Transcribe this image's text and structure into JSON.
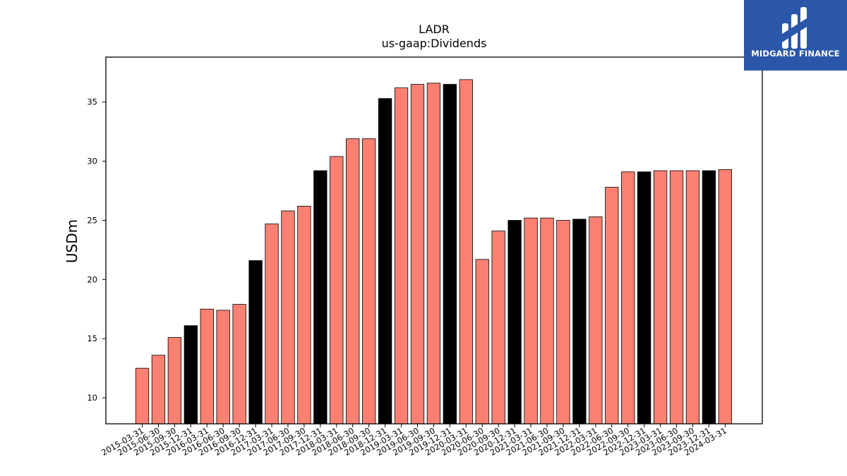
{
  "chart_data": {
    "type": "bar",
    "title": "LADR",
    "subtitle": "us-gaap:Dividends",
    "xlabel": "",
    "ylabel": "USDm",
    "ylim": [
      7.8,
      38.8
    ],
    "yticks": [
      10,
      15,
      20,
      25,
      30,
      35
    ],
    "grid": false,
    "categories": [
      "2015-03-31",
      "2015-06-30",
      "2015-09-30",
      "2015-12-31",
      "2016-03-31",
      "2016-06-30",
      "2016-09-30",
      "2016-12-31",
      "2017-03-31",
      "2017-06-30",
      "2017-09-30",
      "2017-12-31",
      "2018-03-31",
      "2018-06-30",
      "2018-09-30",
      "2018-12-31",
      "2019-03-31",
      "2019-06-30",
      "2019-09-30",
      "2019-12-31",
      "2020-03-31",
      "2020-06-30",
      "2020-09-30",
      "2020-12-31",
      "2021-03-31",
      "2021-06-30",
      "2021-09-30",
      "2021-12-31",
      "2022-03-31",
      "2022-06-30",
      "2022-09-30",
      "2022-12-31",
      "2023-03-31",
      "2023-06-30",
      "2023-09-30",
      "2023-12-31",
      "2024-03-31"
    ],
    "values": [
      12.5,
      13.6,
      15.1,
      16.1,
      17.5,
      17.4,
      17.9,
      21.6,
      24.7,
      25.8,
      26.2,
      29.2,
      30.4,
      31.9,
      31.9,
      35.3,
      36.2,
      36.5,
      36.6,
      36.5,
      36.9,
      21.7,
      24.1,
      25.0,
      25.2,
      25.2,
      25.0,
      25.1,
      25.3,
      27.8,
      29.1,
      29.1,
      29.2,
      29.2,
      29.2,
      29.2,
      29.3
    ],
    "highlight_quarter": "12-31",
    "colors": {
      "default": "#fa8072",
      "highlight": "#000000",
      "edge": "#000000"
    }
  },
  "brand": {
    "name": "MIDGARD FINANCE",
    "color": "#2a57a8"
  }
}
